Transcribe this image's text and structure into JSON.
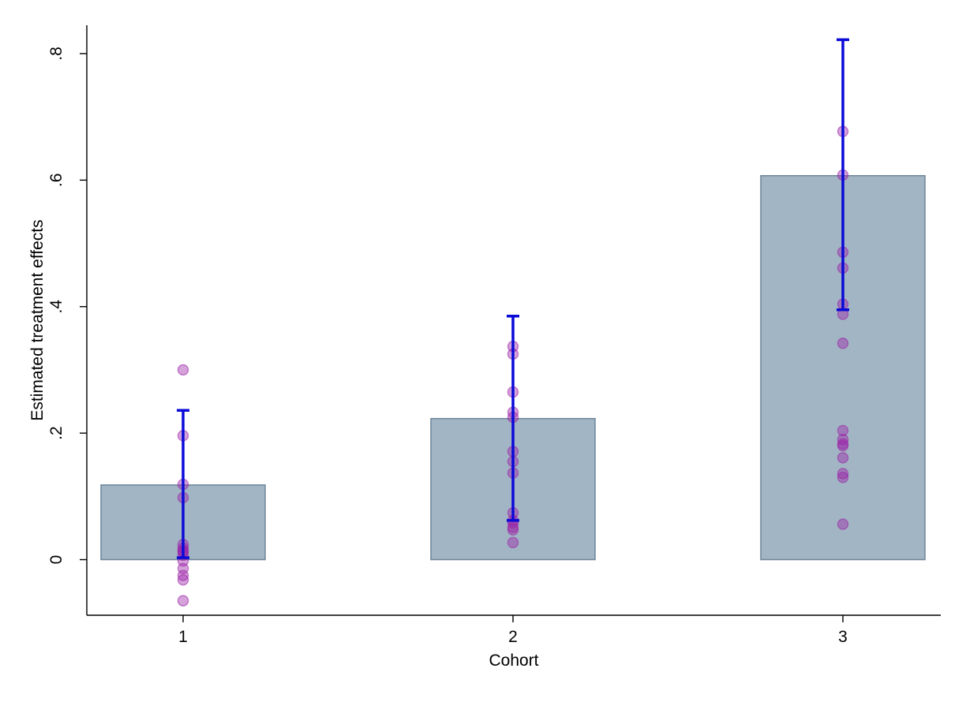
{
  "chart_data": {
    "type": "bar",
    "title": "",
    "xlabel": "Cohort",
    "ylabel": "Estimated treatment effects",
    "categories": [
      "1",
      "2",
      "3"
    ],
    "ylim": [
      -0.088,
      0.845
    ],
    "yticks": [
      0,
      0.2,
      0.4,
      0.6,
      0.8
    ],
    "ytick_labels": [
      "0",
      ".2",
      ".4",
      ".6",
      ".8"
    ],
    "grid": false,
    "legend": "none",
    "bars": [
      0.118,
      0.223,
      0.607
    ],
    "ci": [
      {
        "low": 0.003,
        "high": 0.236
      },
      {
        "low": 0.062,
        "high": 0.385
      },
      {
        "low": 0.395,
        "high": 0.822
      }
    ],
    "points": [
      [
        0.3,
        0.196,
        0.119,
        0.098,
        0.024,
        0.018,
        0.014,
        0.012,
        0.007,
        -0.002,
        -0.014,
        -0.025,
        -0.032,
        -0.065
      ],
      [
        0.337,
        0.325,
        0.265,
        0.233,
        0.225,
        0.171,
        0.155,
        0.137,
        0.074,
        0.062,
        0.058,
        0.051,
        0.047,
        0.027
      ],
      [
        0.677,
        0.608,
        0.486,
        0.461,
        0.404,
        0.388,
        0.342,
        0.204,
        0.19,
        0.183,
        0.18,
        0.161,
        0.136,
        0.13,
        0.056
      ]
    ],
    "colors": {
      "bar_fill": "#a2b5c4",
      "bar_edge": "#6d8599",
      "ci": "#0a0ad8",
      "points": "#9a22a6"
    }
  }
}
